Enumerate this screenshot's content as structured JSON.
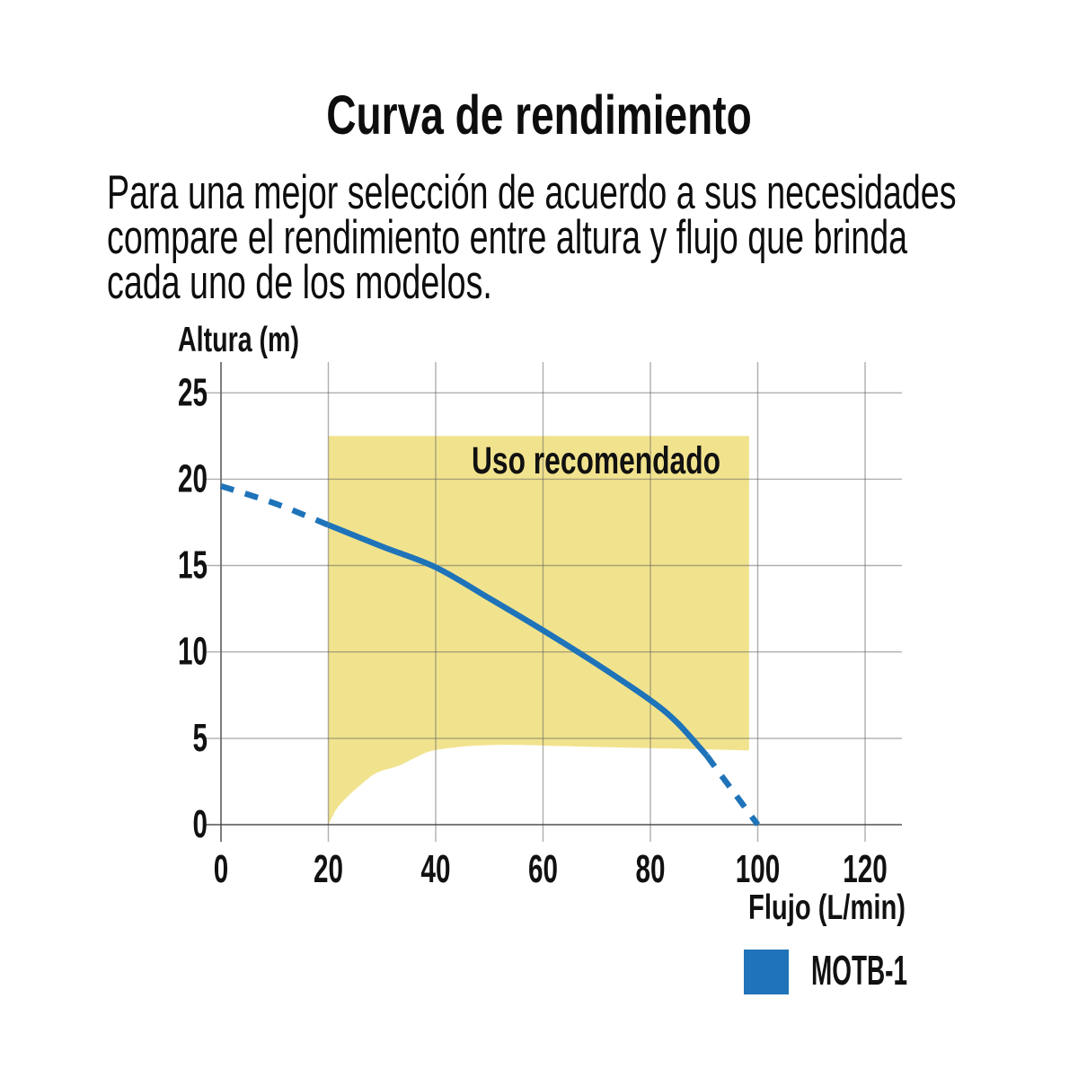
{
  "title": "Curva de rendimiento",
  "intro": {
    "lines": [
      "Para una mejor selección de acuerdo a sus necesidades",
      "compare el rendimiento entre altura y flujo que brinda",
      "cada uno de los modelos."
    ]
  },
  "chart_data": {
    "type": "line",
    "title": "Curva de rendimiento",
    "xlabel": "Flujo (L/min)",
    "ylabel": "Altura (m)",
    "x_ticks": [
      0,
      20,
      40,
      60,
      80,
      100,
      120
    ],
    "y_ticks": [
      0,
      5,
      10,
      15,
      20,
      25
    ],
    "xlim": [
      0,
      120
    ],
    "ylim": [
      0,
      25
    ],
    "grid": true,
    "background": "#ffffff",
    "region": {
      "label": "Uso recomendado",
      "fill_color": "#F1E38E",
      "x_range": [
        20,
        98.4
      ],
      "top": 22.5,
      "bottom_boundary": [
        [
          20,
          0
        ],
        [
          21.5,
          0.9
        ],
        [
          23.5,
          1.6
        ],
        [
          26,
          2.3
        ],
        [
          29,
          3.0
        ],
        [
          33,
          3.4
        ],
        [
          36,
          3.85
        ],
        [
          39,
          4.25
        ],
        [
          43,
          4.45
        ],
        [
          48,
          4.58
        ],
        [
          55,
          4.62
        ],
        [
          70,
          4.5
        ],
        [
          85,
          4.4
        ],
        [
          98.4,
          4.3
        ]
      ]
    },
    "series": [
      {
        "name": "MOTB-1",
        "color": "#1E73B9",
        "points": [
          [
            0,
            19.6
          ],
          [
            10,
            18.6
          ],
          [
            20,
            17.35
          ],
          [
            30,
            16.1
          ],
          [
            40,
            14.9
          ],
          [
            50,
            13.1
          ],
          [
            60,
            11.25
          ],
          [
            70,
            9.3
          ],
          [
            80,
            7.2
          ],
          [
            85,
            5.9
          ],
          [
            90.5,
            4.0
          ],
          [
            95,
            2.1
          ],
          [
            100,
            0
          ]
        ],
        "solid_range": [
          20,
          90.5
        ],
        "dashed_segments": [
          [
            0,
            20
          ],
          [
            90.5,
            100
          ]
        ]
      }
    ],
    "legend_position": "bottom-right"
  }
}
